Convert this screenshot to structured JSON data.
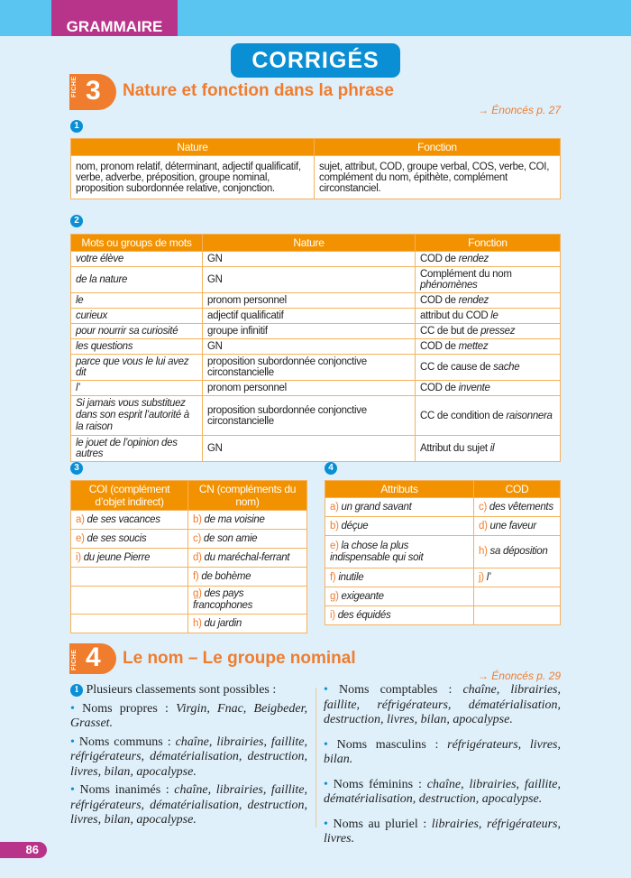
{
  "header": {
    "section": "GRAMMAIRE",
    "title": "CORRIGÉS"
  },
  "fiche3": {
    "label": "FICHE",
    "number": "3",
    "title": "Nature et fonction dans la phrase",
    "ref": "→ Énoncés p. 27",
    "ex1": {
      "num": "1",
      "headers": [
        "Nature",
        "Fonction"
      ],
      "nature": "nom, pronom relatif, déterminant, adjectif qualificatif, verbe, adverbe, préposition, groupe nominal, proposition subordonnée relative, conjonction.",
      "fonction": "sujet, attribut, COD, groupe verbal, COS, verbe, COI, complément du nom, épithète, complément circonstanciel."
    },
    "ex2": {
      "num": "2",
      "headers": [
        "Mots ou groups de mots",
        "Nature",
        "Fonction"
      ],
      "rows": [
        {
          "mot": "votre élève",
          "nature": "GN",
          "fn": "COD de ",
          "em": "rendez"
        },
        {
          "mot": "de la nature",
          "nature": "GN",
          "fn": "Complément du nom ",
          "em": "phénomènes"
        },
        {
          "mot": "le",
          "nature": "pronom personnel",
          "fn": "COD de ",
          "em": "rendez"
        },
        {
          "mot": "curieux",
          "nature": "adjectif qualificatif",
          "fn": "attribut du COD ",
          "em": "le"
        },
        {
          "mot": "pour nourrir sa curiosité",
          "nature": "groupe infinitif",
          "fn": "CC de but de ",
          "em": "pressez"
        },
        {
          "mot": "les questions",
          "nature": "GN",
          "fn": "COD de ",
          "em": "mettez"
        },
        {
          "mot": "parce que vous le lui avez dit",
          "nature": "proposition subordonnée conjonctive circonstancielle",
          "fn": "CC de cause de ",
          "em": "sache"
        },
        {
          "mot": "l’",
          "nature": "pronom personnel",
          "fn": "COD de ",
          "em": "invente"
        },
        {
          "mot": "Si jamais vous substituez dans son esprit l’autorité à la raison",
          "nature": "proposition subordonnée conjonctive circonstancielle",
          "fn": "CC de condition de ",
          "em": "raisonnera"
        },
        {
          "mot": "le jouet de l’opinion des autres",
          "nature": "GN",
          "fn": "Attribut du sujet ",
          "em": "il"
        }
      ]
    },
    "ex3": {
      "num": "3",
      "headers": [
        "COI (complément d’objet indirect)",
        "CN (compléments du nom)"
      ],
      "rows": [
        [
          {
            "k": "a)",
            "t": "de ses vacances"
          },
          {
            "k": "b)",
            "t": "de ma voisine"
          }
        ],
        [
          {
            "k": "e)",
            "t": "de ses soucis"
          },
          {
            "k": "c)",
            "t": "de son amie"
          }
        ],
        [
          {
            "k": "i)",
            "t": "du jeune Pierre"
          },
          {
            "k": "d)",
            "t": "du maréchal-ferrant"
          }
        ],
        [
          {
            "k": "",
            "t": ""
          },
          {
            "k": "f)",
            "t": "de bohème"
          }
        ],
        [
          {
            "k": "",
            "t": ""
          },
          {
            "k": "g)",
            "t": "des pays francophones"
          }
        ],
        [
          {
            "k": "",
            "t": ""
          },
          {
            "k": "h)",
            "t": "du jardin"
          }
        ]
      ]
    },
    "ex4": {
      "num": "4",
      "headers": [
        "Attributs",
        "COD"
      ],
      "rows": [
        [
          {
            "k": "a)",
            "t": "un grand savant"
          },
          {
            "k": "c)",
            "t": "des vêtements"
          }
        ],
        [
          {
            "k": "b)",
            "t": "déçue"
          },
          {
            "k": "d)",
            "t": "une faveur"
          }
        ],
        [
          {
            "k": "e)",
            "t": "la chose la plus indispensable qui soit"
          },
          {
            "k": "h)",
            "t": "sa déposition"
          }
        ],
        [
          {
            "k": "f)",
            "t": "inutile"
          },
          {
            "k": "j)",
            "t": "l’"
          }
        ],
        [
          {
            "k": "g)",
            "t": "exigeante"
          },
          {
            "k": "",
            "t": ""
          }
        ],
        [
          {
            "k": "i)",
            "t": "des équidés"
          },
          {
            "k": "",
            "t": ""
          }
        ]
      ]
    }
  },
  "fiche4": {
    "label": "FICHE",
    "number": "4",
    "title": "Le nom – Le groupe nominal",
    "ref": "→ Énoncés p. 29",
    "ex1": {
      "num": "1",
      "intro": "Plusieurs classements sont possibles :",
      "left": [
        {
          "label": "Noms propres : ",
          "items": "Virgin, Fnac, Beigbeder, Grasset."
        },
        {
          "label": "Noms communs : ",
          "items": "chaîne, librairies, faillite, réfrigérateurs, dématérialisation, destruction, livres, bilan, apocalypse."
        },
        {
          "label": "Noms inanimés : ",
          "items": "chaîne, librairies, faillite, réfrigérateurs, dématérialisation, destruction, livres, bilan, apocalypse."
        }
      ],
      "right": [
        {
          "label": "Noms comptables : ",
          "items": "chaîne, librairies, faillite, réfrigérateurs, dématérialisation, destruction, livres, bilan, apocalypse."
        },
        {
          "label": "Noms masculins : ",
          "items": "réfrigérateurs, livres, bilan."
        },
        {
          "label": "Noms féminins : ",
          "items": "chaîne, librairies, faillite, dématérialisation, destruction, apocalypse."
        },
        {
          "label": "Noms au pluriel : ",
          "items": "librairies, réfrigérateurs, livres."
        }
      ]
    }
  },
  "footer": {
    "page": "86"
  },
  "colors": {
    "orange": "#f39200",
    "blue": "#0a8fd4",
    "magenta": "#b8348a",
    "sky": "#5bc5f2",
    "page_bg": "#dff0fb"
  }
}
